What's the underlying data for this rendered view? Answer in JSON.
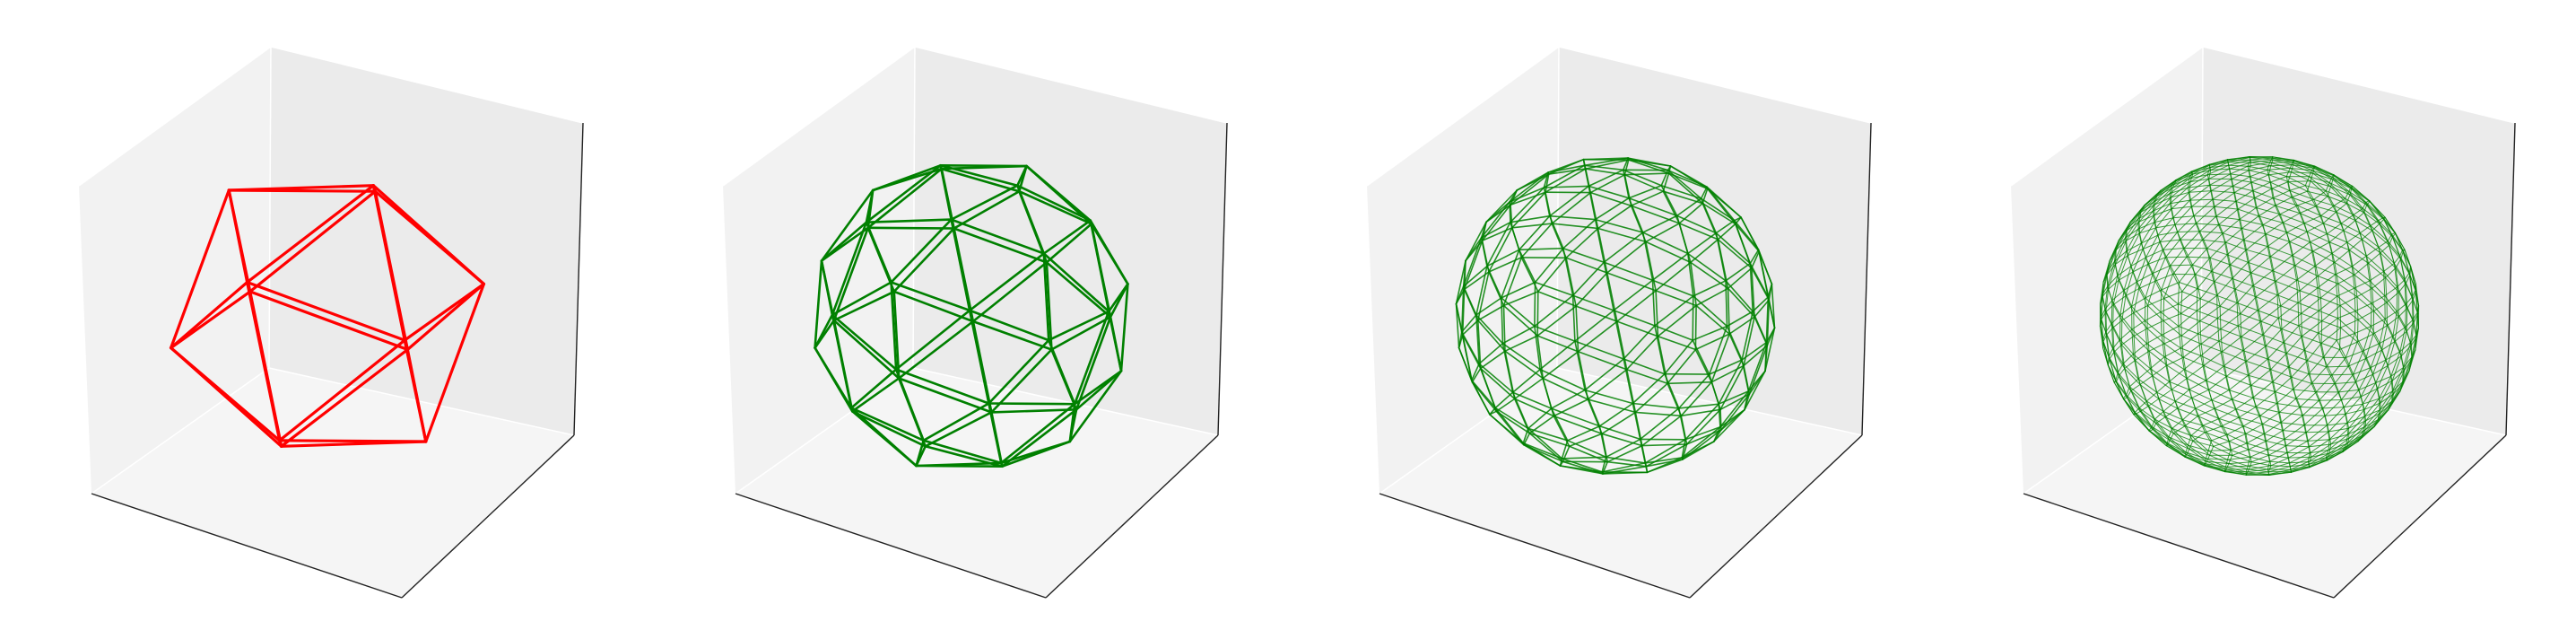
{
  "figure": {
    "panel_count": 4,
    "pane_colors": {
      "back": "#f2f2f2",
      "side": "#ebebeb",
      "floor": "#f5f5f5",
      "axis_line": "#222222"
    }
  },
  "panels": [
    {
      "mesh": "icosahedron",
      "subdivisions": 0,
      "edge_color": "#ff0000"
    },
    {
      "mesh": "geodesic-sphere",
      "subdivisions": 1,
      "edge_color": "#008000"
    },
    {
      "mesh": "geodesic-sphere",
      "subdivisions": 2,
      "edge_color": "#008000"
    },
    {
      "mesh": "geodesic-sphere",
      "subdivisions": 3,
      "edge_color": "#008000"
    }
  ]
}
